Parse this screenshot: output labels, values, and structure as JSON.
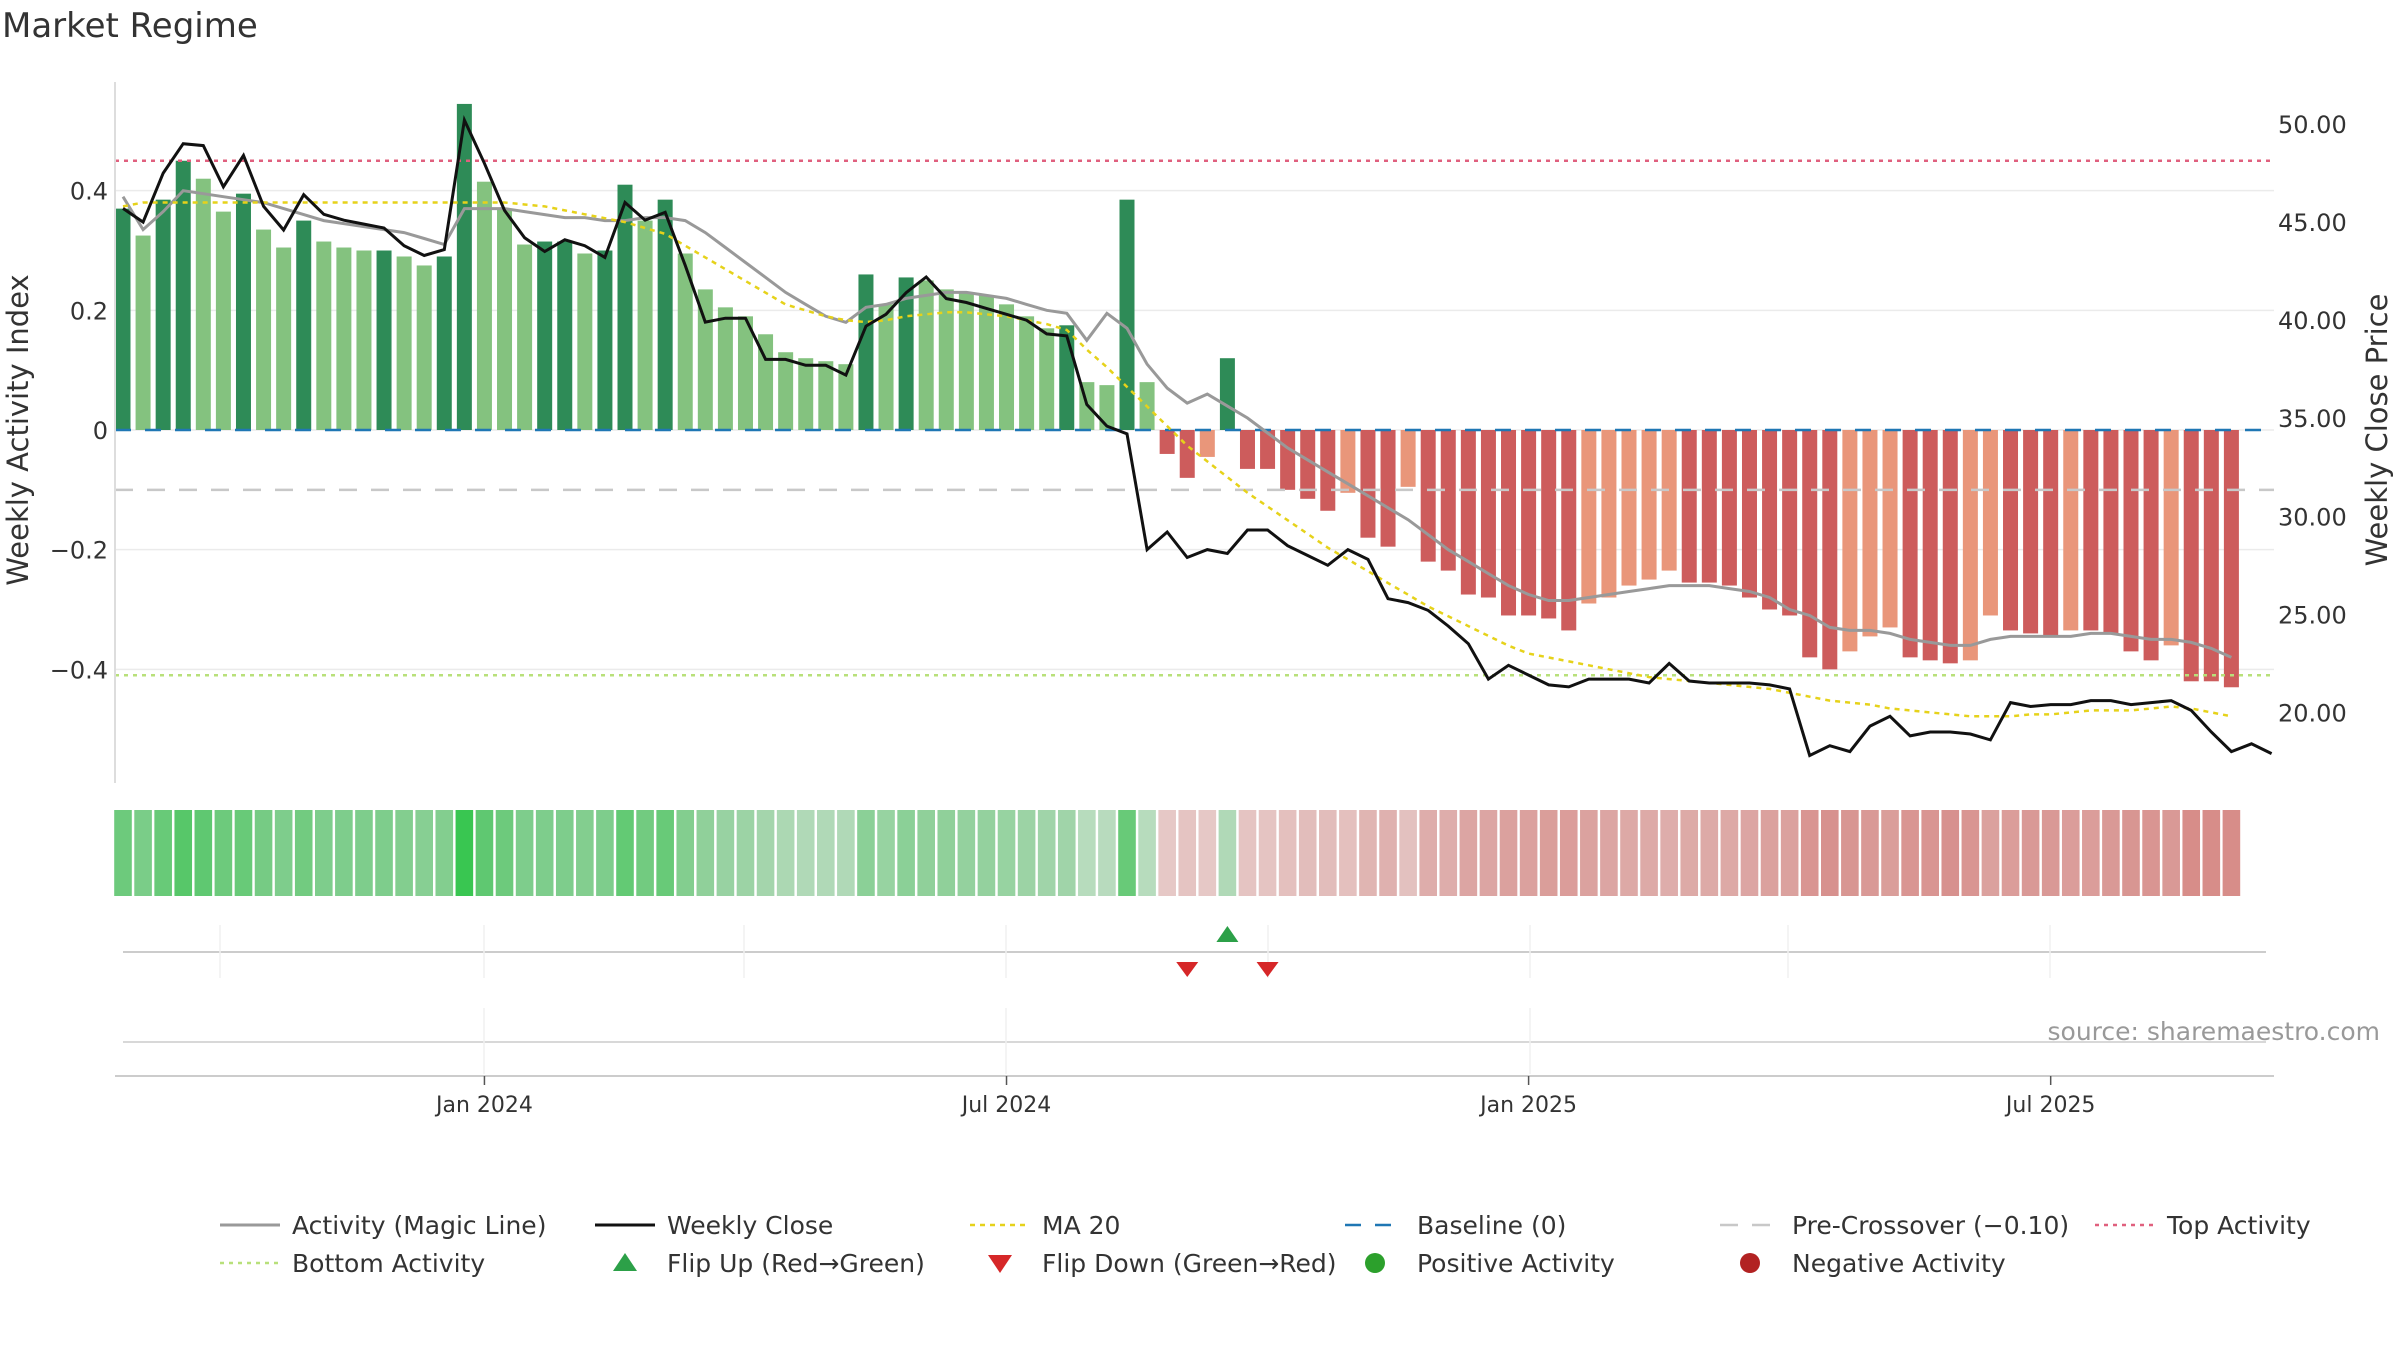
{
  "chart_data": {
    "type": "bar",
    "title": "Market Regime",
    "ylabel_left": "Weekly Activity Index",
    "ylabel_right": "Weekly Close Price",
    "source": "source: sharemaestro.com",
    "y_left_ticks": [
      0.4,
      0.2,
      0,
      -0.2,
      -0.4
    ],
    "y_left_tick_labels": [
      "0.4",
      "0.2",
      "0",
      "−0.2",
      "−0.4"
    ],
    "y_right_ticks": [
      50,
      45,
      40,
      35,
      30,
      25,
      20
    ],
    "y_right_tick_labels": [
      "50.00",
      "45.00",
      "40.00",
      "35.00",
      "30.00",
      "25.00",
      "20.00"
    ],
    "ylim_left": [
      -0.59,
      0.59
    ],
    "ylim_right": [
      16.4,
      52.4
    ],
    "x_ticks": [
      {
        "index": 18,
        "label": "Jan 2024"
      },
      {
        "index": 44,
        "label": "Jul 2024"
      },
      {
        "index": 70,
        "label": "Jan 2025"
      },
      {
        "index": 96,
        "label": "Jul 2025"
      }
    ],
    "reference_lines": {
      "baseline": 0,
      "pre_crossover": -0.1,
      "top_activity": 0.45,
      "bottom_activity": -0.41
    },
    "activity": [
      0.37,
      0.325,
      0.385,
      0.45,
      0.42,
      0.365,
      0.395,
      0.335,
      0.305,
      0.35,
      0.315,
      0.305,
      0.3,
      0.3,
      0.29,
      0.275,
      0.29,
      0.545,
      0.415,
      0.37,
      0.31,
      0.315,
      0.315,
      0.295,
      0.3,
      0.41,
      0.35,
      0.385,
      0.295,
      0.235,
      0.205,
      0.19,
      0.16,
      0.13,
      0.12,
      0.115,
      0.11,
      0.26,
      0.21,
      0.255,
      0.25,
      0.235,
      0.23,
      0.225,
      0.21,
      0.19,
      0.17,
      0.175,
      0.08,
      0.075,
      0.385,
      0.08,
      -0.04,
      -0.08,
      -0.045,
      0.12,
      -0.065,
      -0.065,
      -0.1,
      -0.115,
      -0.135,
      -0.105,
      -0.18,
      -0.195,
      -0.095,
      -0.22,
      -0.235,
      -0.275,
      -0.28,
      -0.31,
      -0.31,
      -0.315,
      -0.335,
      -0.29,
      -0.28,
      -0.26,
      -0.25,
      -0.235,
      -0.255,
      -0.255,
      -0.26,
      -0.28,
      -0.3,
      -0.31,
      -0.38,
      -0.4,
      -0.37,
      -0.345,
      -0.33,
      -0.38,
      -0.385,
      -0.39,
      -0.385,
      -0.31,
      -0.335,
      -0.34,
      -0.345,
      -0.335,
      -0.335,
      -0.34,
      -0.37,
      -0.385,
      -0.36,
      -0.42,
      -0.42,
      -0.43
    ],
    "activity_magic_line": [
      0.39,
      0.335,
      0.365,
      0.4,
      0.395,
      0.39,
      0.385,
      0.38,
      0.37,
      0.36,
      0.35,
      0.345,
      0.34,
      0.335,
      0.33,
      0.32,
      0.31,
      0.37,
      0.37,
      0.37,
      0.365,
      0.36,
      0.355,
      0.355,
      0.35,
      0.35,
      0.355,
      0.355,
      0.35,
      0.33,
      0.305,
      0.28,
      0.255,
      0.23,
      0.21,
      0.19,
      0.18,
      0.205,
      0.21,
      0.22,
      0.225,
      0.23,
      0.23,
      0.225,
      0.22,
      0.21,
      0.2,
      0.195,
      0.15,
      0.195,
      0.17,
      0.11,
      0.07,
      0.045,
      0.06,
      0.04,
      0.02,
      -0.005,
      -0.03,
      -0.05,
      -0.07,
      -0.09,
      -0.11,
      -0.13,
      -0.15,
      -0.175,
      -0.2,
      -0.22,
      -0.24,
      -0.26,
      -0.275,
      -0.285,
      -0.285,
      -0.28,
      -0.275,
      -0.27,
      -0.265,
      -0.26,
      -0.26,
      -0.26,
      -0.265,
      -0.27,
      -0.28,
      -0.3,
      -0.31,
      -0.33,
      -0.335,
      -0.335,
      -0.34,
      -0.35,
      -0.355,
      -0.36,
      -0.36,
      -0.35,
      -0.345,
      -0.345,
      -0.345,
      -0.345,
      -0.34,
      -0.34,
      -0.345,
      -0.35,
      -0.35,
      -0.355,
      -0.365,
      -0.38
    ],
    "weekly_close": [
      45.7,
      45.0,
      47.5,
      49.0,
      48.9,
      46.8,
      48.4,
      45.8,
      44.6,
      46.4,
      45.4,
      45.1,
      44.9,
      44.7,
      43.8,
      43.3,
      43.6,
      50.2,
      48.0,
      45.6,
      44.2,
      43.5,
      44.1,
      43.8,
      43.2,
      46.0,
      45.1,
      45.5,
      42.8,
      39.9,
      40.1,
      40.1,
      38.0,
      38.0,
      37.7,
      37.7,
      37.2,
      39.7,
      40.3,
      41.4,
      42.2,
      41.1,
      40.9,
      40.6,
      40.3,
      40.0,
      39.3,
      39.2,
      35.7,
      34.6,
      34.2,
      28.3,
      29.2,
      27.9,
      28.3,
      28.1,
      29.3,
      29.3,
      28.5,
      28.0,
      27.5,
      28.3,
      27.8,
      25.8,
      25.6,
      25.2,
      24.4,
      23.5,
      21.7,
      22.4,
      21.9,
      21.4,
      21.3,
      21.7,
      21.7,
      21.7,
      21.5,
      22.5,
      21.6,
      21.5,
      21.5,
      21.5,
      21.4,
      21.2,
      17.8,
      18.3,
      18.0,
      19.3,
      19.8,
      18.8,
      19.0,
      19.0,
      18.9,
      18.6,
      20.5,
      20.3,
      20.4,
      20.4,
      20.6,
      20.6,
      20.4,
      20.5,
      20.6,
      20.1,
      19.0,
      18.0,
      18.4,
      17.9
    ],
    "ma20": [
      45.8,
      46.0,
      46.0,
      46.0,
      46.0,
      46.0,
      46.0,
      46.0,
      46.0,
      46.0,
      46.0,
      46.0,
      46.0,
      46.0,
      46.0,
      46.0,
      46.0,
      46.0,
      46.0,
      46.0,
      45.9,
      45.8,
      45.6,
      45.4,
      45.2,
      45.0,
      44.7,
      44.4,
      43.8,
      43.2,
      42.6,
      42.0,
      41.4,
      40.8,
      40.5,
      40.2,
      40.0,
      39.9,
      40.0,
      40.2,
      40.3,
      40.4,
      40.4,
      40.3,
      40.2,
      40.0,
      39.8,
      39.5,
      38.5,
      37.6,
      36.6,
      35.6,
      34.6,
      33.6,
      32.8,
      32.0,
      31.2,
      30.5,
      29.8,
      29.1,
      28.4,
      27.8,
      27.2,
      26.6,
      26.0,
      25.4,
      24.9,
      24.4,
      23.9,
      23.4,
      23.0,
      22.8,
      22.6,
      22.4,
      22.2,
      22.0,
      21.8,
      21.7,
      21.6,
      21.5,
      21.4,
      21.3,
      21.2,
      21.0,
      20.8,
      20.6,
      20.5,
      20.4,
      20.2,
      20.1,
      20.0,
      19.9,
      19.8,
      19.8,
      19.8,
      19.9,
      19.9,
      20.0,
      20.1,
      20.1,
      20.1,
      20.2,
      20.3,
      20.2,
      20.0,
      19.8
    ],
    "flips_up": [
      55
    ],
    "flips_down": [
      53,
      57
    ],
    "legend": [
      {
        "key": "magic",
        "label": "Activity (Magic Line)"
      },
      {
        "key": "close",
        "label": "Weekly Close"
      },
      {
        "key": "ma20",
        "label": "MA 20"
      },
      {
        "key": "baseline",
        "label": "Baseline (0)"
      },
      {
        "key": "precross",
        "label": "Pre-Crossover (−0.10)"
      },
      {
        "key": "top",
        "label": "Top Activity"
      },
      {
        "key": "bottom",
        "label": "Bottom Activity"
      },
      {
        "key": "flipup",
        "label": "Flip Up (Red→Green)"
      },
      {
        "key": "flipdown",
        "label": "Flip Down (Green→Red)"
      },
      {
        "key": "pos",
        "label": "Positive Activity"
      },
      {
        "key": "neg",
        "label": "Negative Activity"
      }
    ],
    "legend_placement": "bottom",
    "grid": true
  },
  "colors": {
    "pos_dark": "#2e8b57",
    "pos_light": "#84c27f",
    "neg_dark": "#cd5c5c",
    "neg_light": "#e9967a",
    "magic": "#999999",
    "close": "#111111",
    "ma20": "#e6d21a",
    "baseline": "#1f77b4",
    "precross": "#c8c8c8",
    "top": "#e0607e",
    "bottom": "#b8e07a",
    "flip_up": "#2ca048",
    "flip_down": "#d62728",
    "pos_marker": "#2ca02c",
    "neg_marker": "#b22222"
  }
}
